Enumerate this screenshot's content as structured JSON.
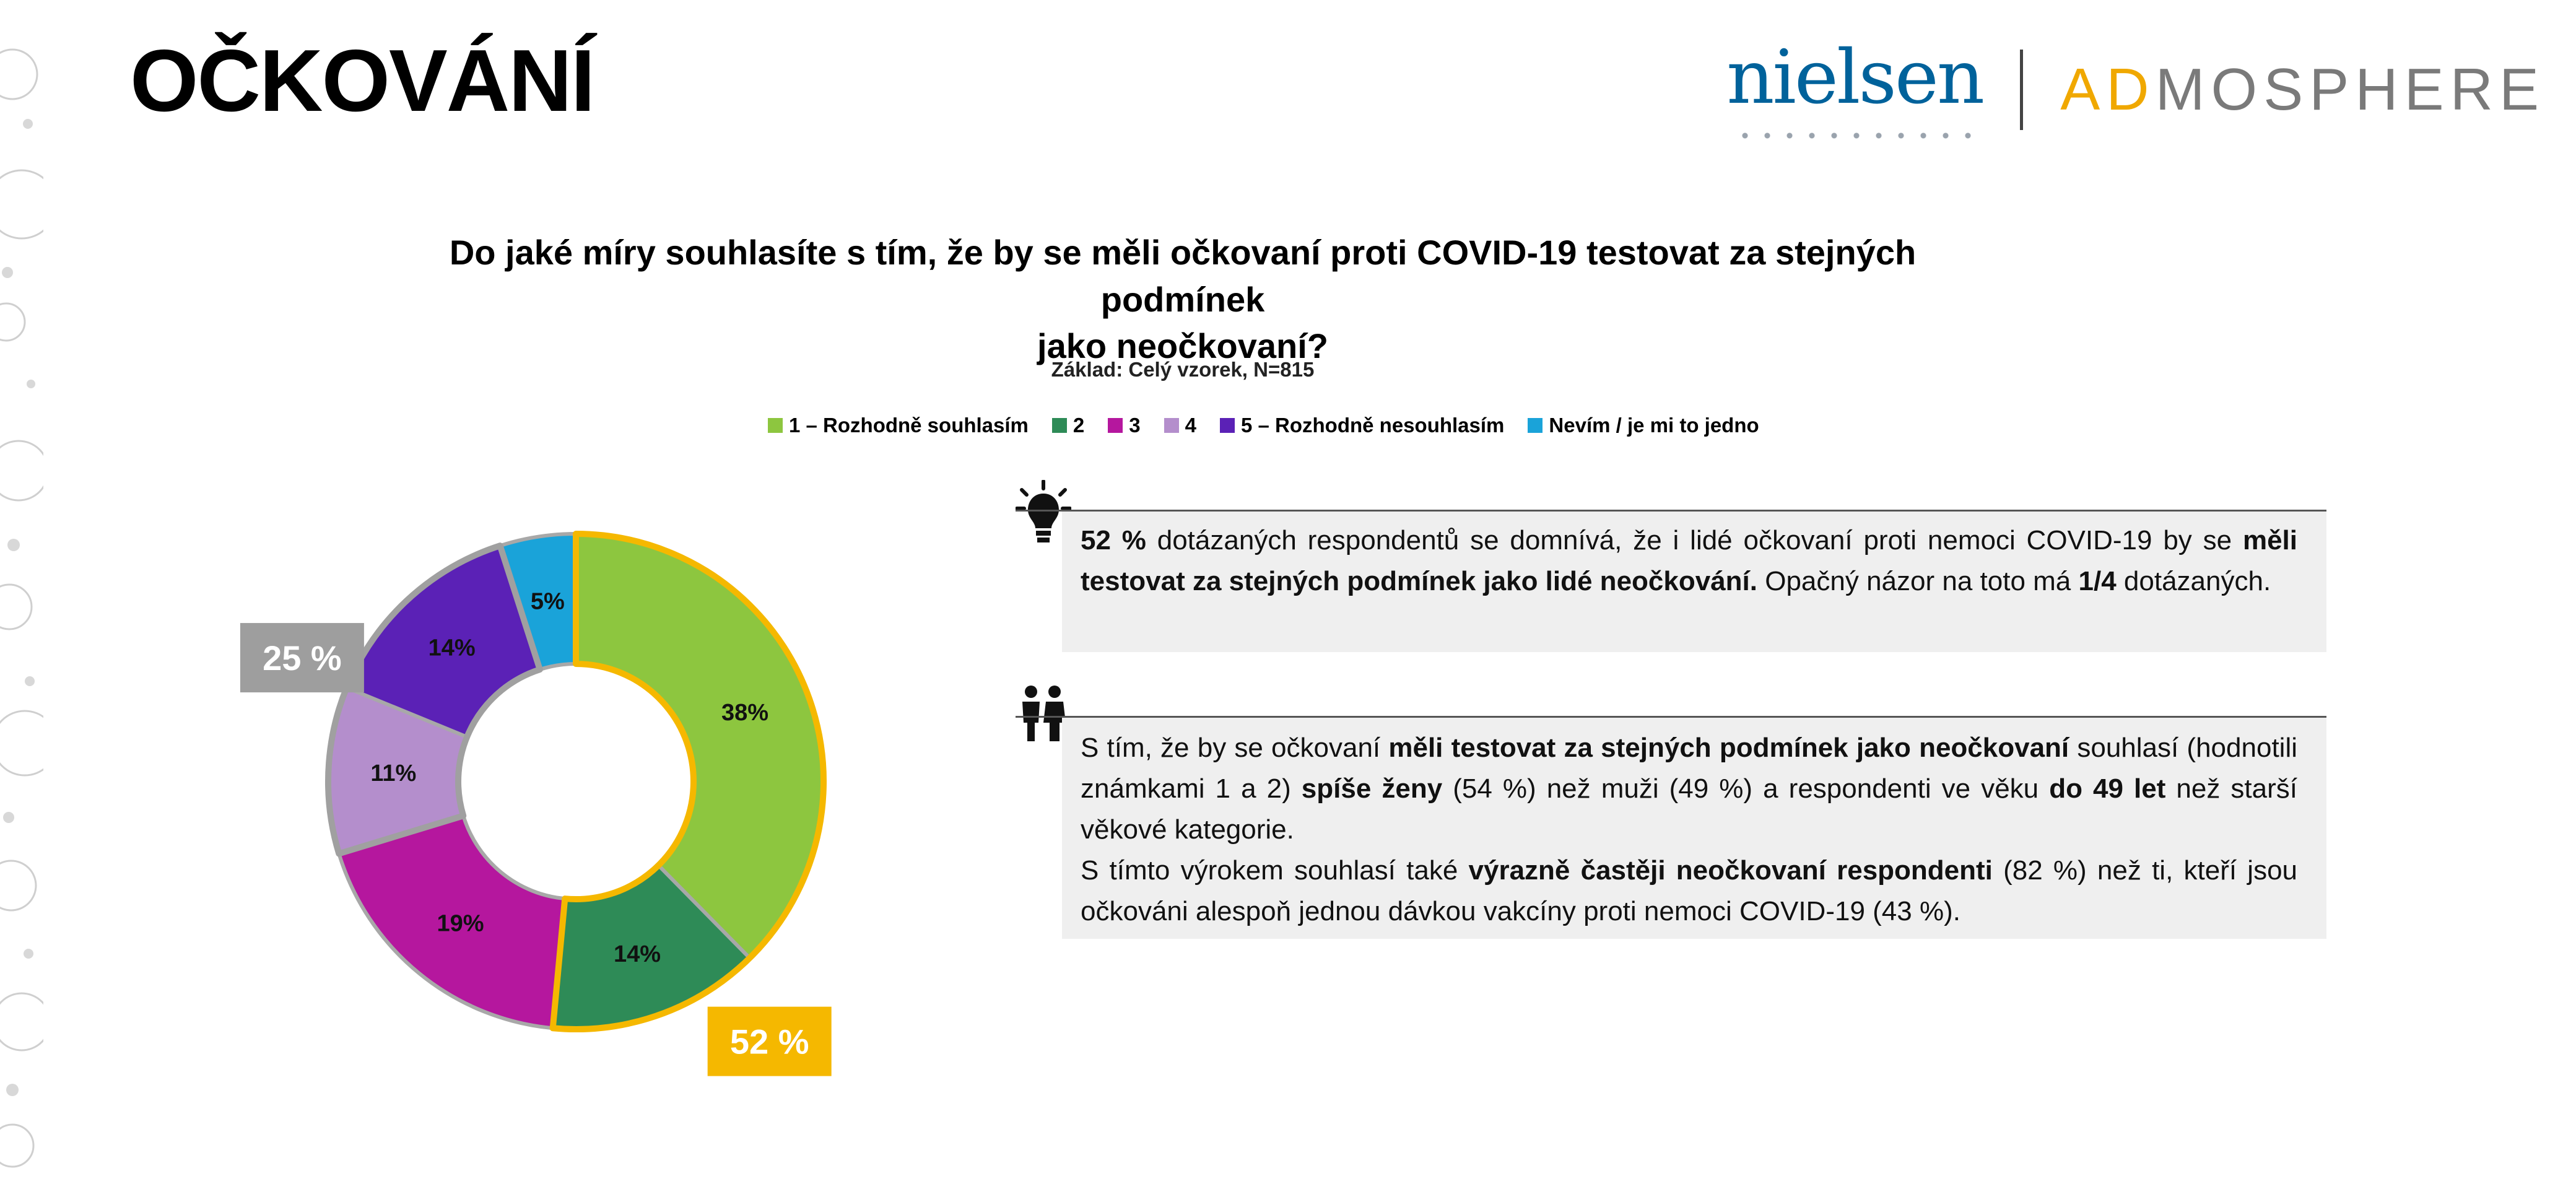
{
  "header": {
    "title": "OČKOVÁNÍ",
    "logo_nielsen": "nielsen",
    "logo_ad_prefix": "AD",
    "logo_ad_rest": "MOSPHERE"
  },
  "question": {
    "line1": "Do jaké míry souhlasíte s tím, že by se měli očkovaní proti COVID-19 testovat za stejných podmínek",
    "line2": "jako neočkovaní?"
  },
  "base_note": "Základ: Celý vzorek, N=815",
  "chart_data": {
    "type": "pie",
    "donut": true,
    "categories": [
      "1 – Rozhodně souhlasím",
      "2",
      "3",
      "4",
      "5 – Rozhodně nesouhlasím",
      "Nevím / je mi to jedno"
    ],
    "values": [
      38,
      14,
      19,
      11,
      14,
      5
    ],
    "labels": [
      "38%",
      "14%",
      "19%",
      "11%",
      "14%",
      "5%"
    ],
    "colors": [
      "#8dc63f",
      "#2e8b57",
      "#b5179e",
      "#b48ecc",
      "#5b21b6",
      "#1aa3d9"
    ],
    "callouts": [
      {
        "text": "52 %",
        "color": "#f5b800",
        "group": "agree"
      },
      {
        "text": "25 %",
        "color": "#9e9e9e",
        "group": "disagree"
      }
    ],
    "legend_placement": "top"
  },
  "panel1": {
    "icon": "lightbulb-icon",
    "runs": [
      {
        "t": "52 %",
        "b": true
      },
      {
        "t": " dotázaných respondentů se domnívá, že i lidé očkovaní proti nemoci COVID-19 by se ",
        "b": false
      },
      {
        "t": "měli testovat za stejných podmínek jako lidé neočkování.",
        "b": true
      },
      {
        "t": " Opačný názor na toto má ",
        "b": false
      },
      {
        "t": "1/4",
        "b": true
      },
      {
        "t": " dotázaných.",
        "b": false
      }
    ]
  },
  "panel2": {
    "icon": "people-icon",
    "para1": [
      {
        "t": "S tím, že by se očkovaní ",
        "b": false
      },
      {
        "t": "měli testovat za stejných podmínek jako neočkovaní",
        "b": true
      },
      {
        "t": " souhlasí (hodnotili známkami 1 a 2) ",
        "b": false
      },
      {
        "t": "spíše ženy",
        "b": true
      },
      {
        "t": " (54 %) než muži (49 %) a respondenti ve věku ",
        "b": false
      },
      {
        "t": "do 49 let",
        "b": true
      },
      {
        "t": " než starší věkové kategorie.",
        "b": false
      }
    ],
    "para2": [
      {
        "t": "S tímto výrokem souhlasí také ",
        "b": false
      },
      {
        "t": "výrazně častěji neočkovaní respondenti",
        "b": true
      },
      {
        "t": " (82 %) než ti, kteří jsou očkováni alespoň jednou dávkou vakcíny proti nemoci COVID-19 (43 %).",
        "b": false
      }
    ]
  }
}
